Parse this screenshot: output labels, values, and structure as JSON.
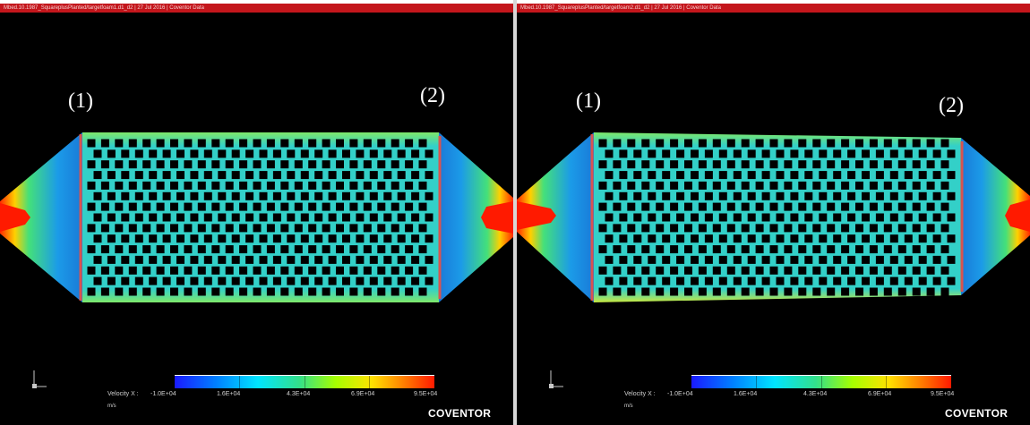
{
  "panels": [
    {
      "title": "Mbed.10.1987_SquareplusPlanted/targetfoam1.d1_d2 | 27 Jul 2016 | Coventor Data",
      "label_inlet": "(1)",
      "label_outlet": "(2)",
      "legend": {
        "quantity": "Velocity X :",
        "ticks": [
          "-1.0E+04",
          "1.6E+04",
          "4.3E+04",
          "6.9E+04",
          "9.5E+04"
        ],
        "unit": "m/s"
      },
      "brand": "COVENTOR"
    },
    {
      "title": "Mbed.10.1987_SquareplusPlanted/targetfoam2.d1_d2 | 27 Jul 2016 | Coventor Data",
      "label_inlet": "(1)",
      "label_outlet": "(2)",
      "legend": {
        "quantity": "Velocity X :",
        "ticks": [
          "-1.0E+04",
          "1.6E+04",
          "4.3E+04",
          "6.9E+04",
          "9.5E+04"
        ],
        "unit": "m/s"
      },
      "brand": "COVENTOR"
    }
  ],
  "colors": {
    "title_bar": "#c4161c",
    "background": "#000000",
    "chamber_fill": "#33d0c8",
    "boundary_line": "#d9534f",
    "pillar": "#000000",
    "jet": "#ff1a00"
  }
}
